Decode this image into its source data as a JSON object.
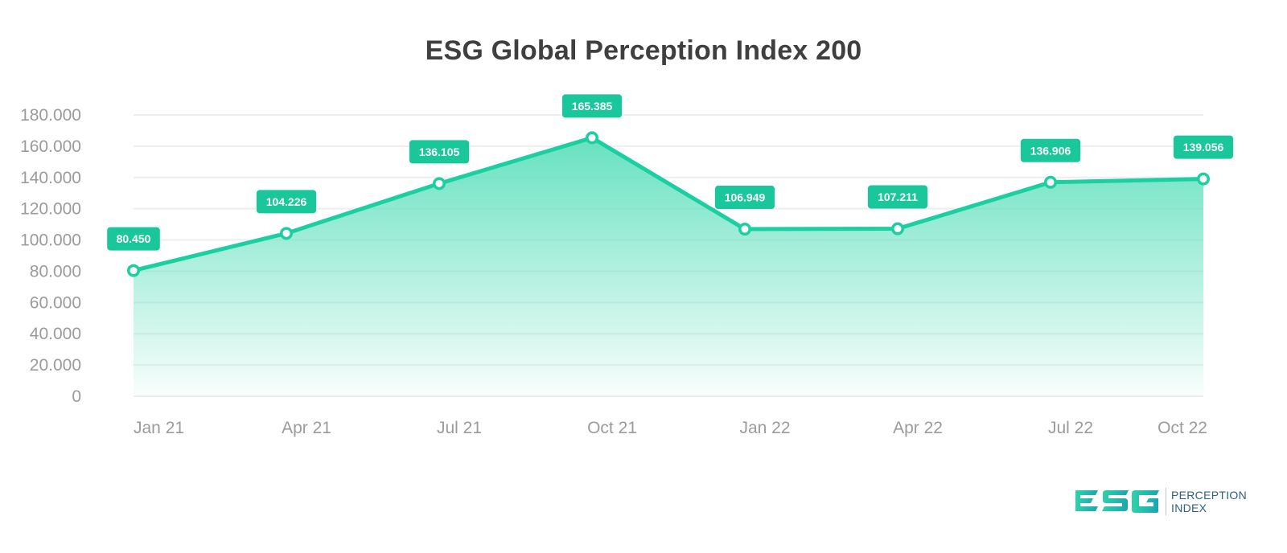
{
  "chart_data": {
    "type": "area",
    "title": "ESG Global Perception Index 200",
    "categories": [
      "Jan 21",
      "Apr 21",
      "Jul 21",
      "Oct 21",
      "Jan 22",
      "Apr 22",
      "Jul 22",
      "Oct 22"
    ],
    "series": [
      {
        "values": [
          80.45,
          104.226,
          136.105,
          165.385,
          106.949,
          107.211,
          136.906,
          139.056
        ],
        "data_labels": [
          "80.450",
          "104.226",
          "136.105",
          "165.385",
          "106.949",
          "107.211",
          "136.906",
          "139.056"
        ]
      }
    ],
    "yticks": [
      0,
      20,
      40,
      60,
      80,
      100,
      120,
      140,
      160,
      180
    ],
    "ytick_labels": [
      "0",
      "20.000",
      "40.000",
      "60.000",
      "80.000",
      "100.000",
      "120.000",
      "140.000",
      "160.000",
      "180.000"
    ],
    "ylim": [
      0,
      180
    ],
    "grid": true,
    "xlabel": "",
    "ylabel": "",
    "colors": {
      "line": "#1ccfa0",
      "fill_top": "#5fe0bd",
      "label_bg": "#19c79a",
      "grid": "#eeeeee"
    }
  },
  "logo": {
    "wordmark": "ESG",
    "line1": "PERCEPTION",
    "line2": "INDEX"
  }
}
